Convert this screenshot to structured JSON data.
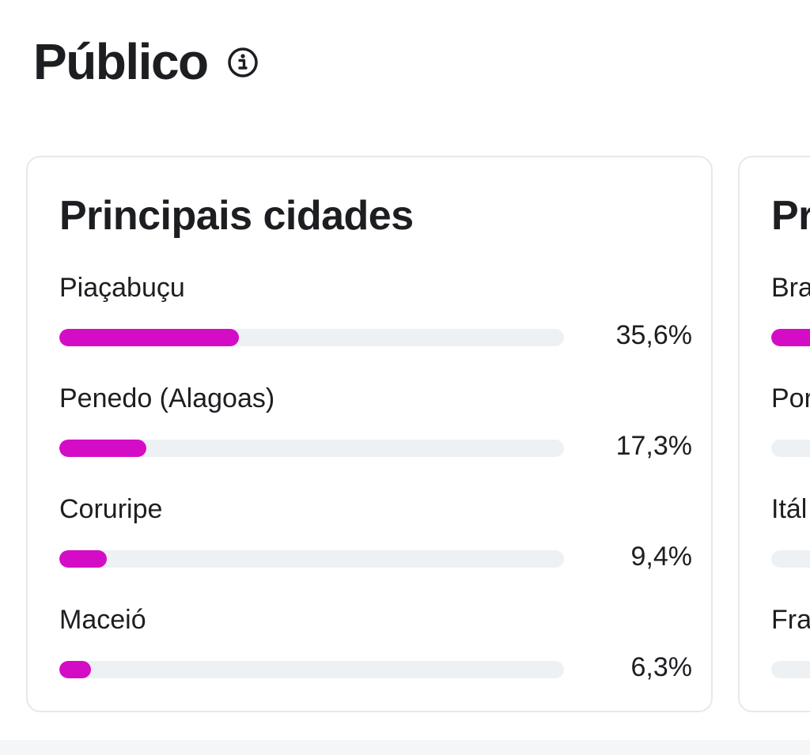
{
  "header": {
    "title": "Público",
    "info_icon": "info-circle-icon"
  },
  "colors": {
    "bar_fill": "#d50cc6",
    "bar_track": "#eef1f4",
    "card_border": "#e6e8eb"
  },
  "cities": {
    "title": "Principais cidades",
    "items": [
      {
        "label": "Piaçabuçu",
        "value": "35,6%",
        "fraction": 0.356
      },
      {
        "label": "Penedo (Alagoas)",
        "value": "17,3%",
        "fraction": 0.173
      },
      {
        "label": "Coruripe",
        "value": "9,4%",
        "fraction": 0.094
      },
      {
        "label": "Maceió",
        "value": "6,3%",
        "fraction": 0.063
      }
    ]
  },
  "countries": {
    "title": "Pr",
    "items": [
      {
        "label": "Bra",
        "fraction": 0.7
      },
      {
        "label": "Por",
        "fraction": 0.0
      },
      {
        "label": "Itál",
        "fraction": 0.0
      },
      {
        "label": "Fra",
        "fraction": 0.0
      }
    ]
  }
}
